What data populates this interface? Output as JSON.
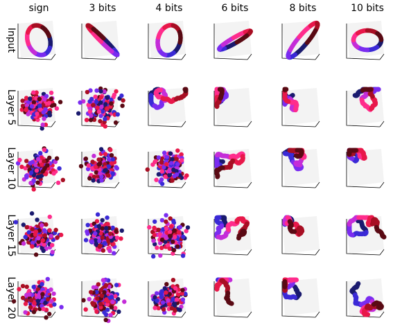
{
  "columns": [
    "sign",
    "3 bits",
    "4 bits",
    "6 bits",
    "8 bits",
    "10 bits"
  ],
  "rows": [
    "Input",
    "Layer 5",
    "Layer 10",
    "Layer 15",
    "Layer 20"
  ],
  "colors": {
    "background": "#ffffff",
    "pane": "#f2f2f2",
    "axis": "#000000",
    "point_colors": [
      "#1a1a6e",
      "#3b2ad6",
      "#7a2cf0",
      "#c42dd8",
      "#ff2d8c",
      "#e8184a",
      "#a80f24",
      "#5a0a14"
    ]
  }
}
